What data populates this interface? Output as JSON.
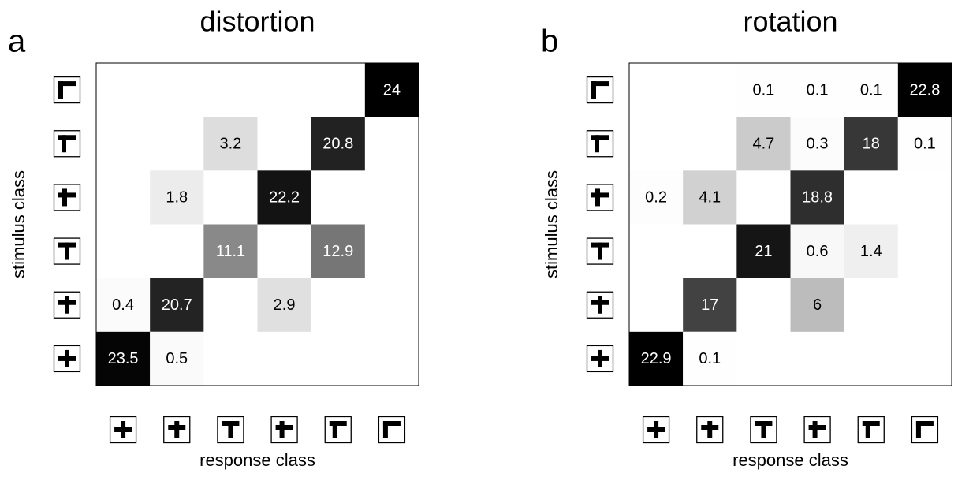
{
  "chart_data": [
    {
      "type": "heatmap",
      "panel": "a",
      "title": "distortion",
      "xlabel": "response class",
      "ylabel": "stimulus class",
      "values": [
        [
          null,
          null,
          null,
          null,
          null,
          24
        ],
        [
          null,
          null,
          3.2,
          null,
          20.8,
          null
        ],
        [
          null,
          1.8,
          null,
          22.2,
          null,
          null
        ],
        [
          null,
          null,
          11.1,
          null,
          12.9,
          null
        ],
        [
          0.4,
          20.7,
          null,
          2.9,
          null,
          null
        ],
        [
          23.5,
          0.5,
          null,
          null,
          null,
          null
        ]
      ]
    },
    {
      "type": "heatmap",
      "panel": "b",
      "title": "rotation",
      "xlabel": "response class",
      "ylabel": "stimulus class",
      "values": [
        [
          null,
          null,
          0.1,
          0.1,
          0.1,
          22.8
        ],
        [
          null,
          null,
          4.7,
          0.3,
          18,
          0.1
        ],
        [
          0.2,
          4.1,
          null,
          18.8,
          null,
          null
        ],
        [
          null,
          null,
          21,
          0.6,
          1.4,
          null
        ],
        [
          null,
          17,
          null,
          6,
          null,
          null
        ],
        [
          22.9,
          0.1,
          null,
          null,
          null,
          null
        ]
      ]
    }
  ]
}
